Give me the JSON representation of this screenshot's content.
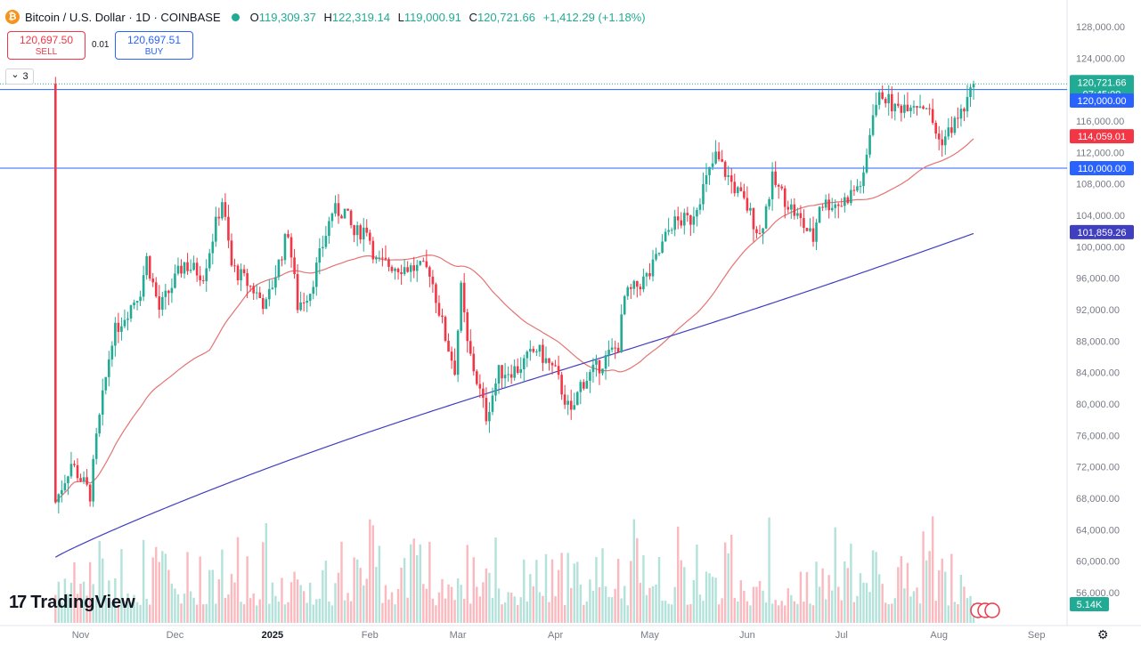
{
  "header": {
    "coin_icon": "bitcoin-icon",
    "coin_glyph": "₿",
    "symbol": "Bitcoin / U.S. Dollar · 1D · COINBASE",
    "o_label": "O",
    "o_val": "119,309.37",
    "h_label": "H",
    "h_val": "122,319.14",
    "l_label": "L",
    "l_val": "119,000.91",
    "c_label": "C",
    "c_val": "120,721.66",
    "change": "+1,412.29 (+1.18%)"
  },
  "trade": {
    "sell_price": "120,697.50",
    "sell_label": "SELL",
    "spread": "0.01",
    "buy_price": "120,697.51",
    "buy_label": "BUY"
  },
  "indicators_toggle": {
    "icon": "chevron-down-icon",
    "glyph": "⌄",
    "count": "3"
  },
  "footer": {
    "logo_text": "TradingView",
    "logo_glyph": "17",
    "settings_icon": "gear-icon",
    "settings_glyph": "⚙"
  },
  "colors": {
    "up": "#22ab94",
    "down": "#f23645",
    "ma50": "#e57373",
    "ma200": "#3f3fbf",
    "line": "#2962ff",
    "price": "#22ab94"
  },
  "chart_data": {
    "type": "candlestick",
    "title": "Bitcoin / U.S. Dollar · 1D · COINBASE",
    "y_ticks": [
      "128,000.00",
      "124,000.00",
      "120,000.00",
      "116,000.00",
      "112,000.00",
      "108,000.00",
      "104,000.00",
      "100,000.00",
      "96,000.00",
      "92,000.00",
      "88,000.00",
      "84,000.00",
      "80,000.00",
      "76,000.00",
      "72,000.00",
      "68,000.00",
      "64,000.00",
      "60,000.00",
      "56,000.00"
    ],
    "x_labels": [
      "Nov",
      "Dec",
      "2025",
      "Feb",
      "Mar",
      "Apr",
      "May",
      "Jun",
      "Jul",
      "Aug",
      "Sep"
    ],
    "ylim": [
      54000,
      130000
    ],
    "last_price": {
      "value": 120721.66,
      "label": "120,721.66",
      "countdown": "07:45:09"
    },
    "horizontal_lines": [
      {
        "value": 120000,
        "label": "120,000.00"
      },
      {
        "value": 110000,
        "label": "110,000.00"
      }
    ],
    "moving_averages": [
      {
        "label": "114,059.01",
        "last": 114059.01
      },
      {
        "label": "101,859.26",
        "last": 101859.26
      }
    ],
    "volume_label": "5.14K",
    "price_anchors": [
      [
        "2024-10-24",
        67500
      ],
      [
        "2024-10-29",
        72500
      ],
      [
        "2024-11-04",
        68500
      ],
      [
        "2024-11-06",
        75500
      ],
      [
        "2024-11-11",
        88500
      ],
      [
        "2024-11-13",
        90000
      ],
      [
        "2024-11-20",
        94500
      ],
      [
        "2024-11-22",
        98500
      ],
      [
        "2024-11-26",
        92000
      ],
      [
        "2024-12-04",
        98000
      ],
      [
        "2024-12-05",
        97500
      ],
      [
        "2024-12-10",
        96500
      ],
      [
        "2024-12-16",
        106000
      ],
      [
        "2024-12-19",
        97500
      ],
      [
        "2024-12-26",
        94500
      ],
      [
        "2024-12-30",
        92500
      ],
      [
        "2025-01-06",
        102000
      ],
      [
        "2025-01-09",
        92500
      ],
      [
        "2025-01-13",
        94500
      ],
      [
        "2025-01-20",
        104500
      ],
      [
        "2025-01-24",
        104500
      ],
      [
        "2025-01-27",
        101500
      ],
      [
        "2025-01-31",
        102500
      ],
      [
        "2025-02-03",
        98000
      ],
      [
        "2025-02-10",
        97500
      ],
      [
        "2025-02-20",
        97000
      ],
      [
        "2025-02-25",
        88500
      ],
      [
        "2025-02-28",
        84500
      ],
      [
        "2025-03-02",
        94500
      ],
      [
        "2025-03-04",
        87500
      ],
      [
        "2025-03-10",
        78500
      ],
      [
        "2025-03-14",
        84000
      ],
      [
        "2025-03-20",
        84500
      ],
      [
        "2025-03-26",
        87000
      ],
      [
        "2025-04-01",
        84000
      ],
      [
        "2025-04-06",
        78500
      ],
      [
        "2025-04-09",
        82500
      ],
      [
        "2025-04-14",
        84500
      ],
      [
        "2025-04-21",
        87500
      ],
      [
        "2025-04-23",
        93500
      ],
      [
        "2025-05-01",
        96500
      ],
      [
        "2025-05-08",
        103000
      ],
      [
        "2025-05-14",
        103500
      ],
      [
        "2025-05-22",
        111500
      ],
      [
        "2025-05-28",
        107500
      ],
      [
        "2025-06-01",
        105000
      ],
      [
        "2025-06-05",
        101500
      ],
      [
        "2025-06-09",
        108500
      ],
      [
        "2025-06-14",
        105500
      ],
      [
        "2025-06-22",
        101000
      ],
      [
        "2025-06-24",
        105500
      ],
      [
        "2025-07-01",
        105500
      ],
      [
        "2025-07-08",
        108500
      ],
      [
        "2025-07-11",
        117500
      ],
      [
        "2025-07-14",
        119500
      ],
      [
        "2025-07-18",
        117500
      ],
      [
        "2025-07-23",
        118500
      ],
      [
        "2025-07-28",
        118000
      ],
      [
        "2025-08-01",
        113500
      ],
      [
        "2025-08-03",
        114000
      ],
      [
        "2025-08-08",
        117000
      ],
      [
        "2025-08-11",
        119300
      ],
      [
        "2025-08-12",
        120722
      ]
    ]
  }
}
